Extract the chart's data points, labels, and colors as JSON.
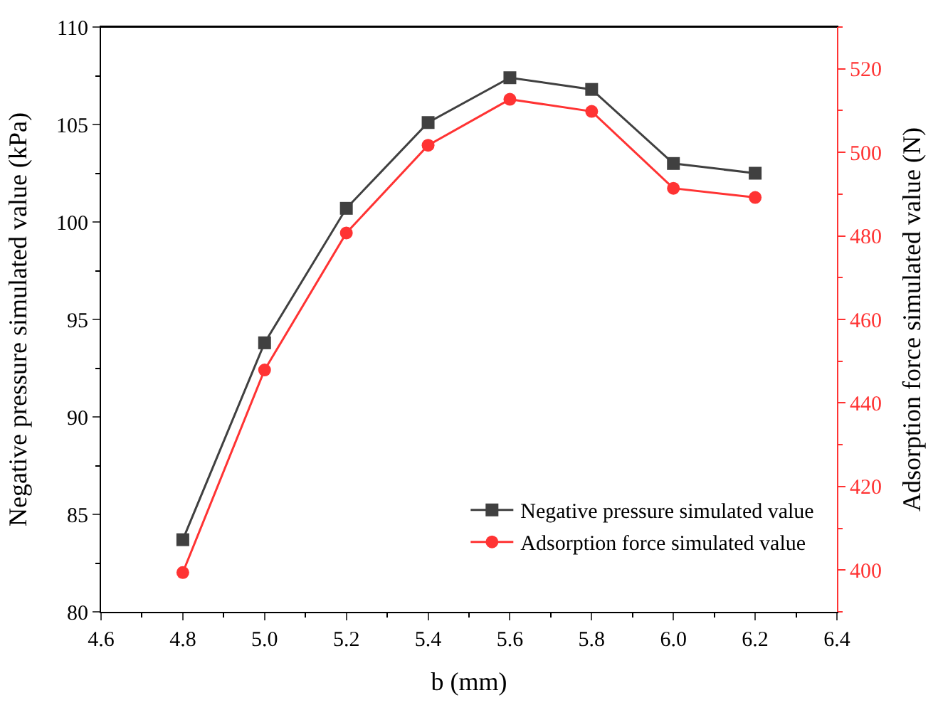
{
  "chart_data": {
    "type": "line",
    "xlabel": "b (mm)",
    "ylabel": "Negative pressure simulated value (kPa)",
    "y2label": "Adsorption force simulated value (N)",
    "x": [
      4.8,
      5.0,
      5.2,
      5.4,
      5.6,
      5.8,
      6.0,
      6.2
    ],
    "series": [
      {
        "name": "Negative pressure simulated value",
        "color": "#404040",
        "marker": "square",
        "values": [
          83.7,
          93.8,
          100.7,
          105.1,
          107.4,
          106.8,
          103.0,
          102.5
        ]
      },
      {
        "name": "Adsorption force simulated value",
        "color": "#ff3333",
        "marker": "circle",
        "axis": "y2",
        "values": [
          399.4,
          447.9,
          480.7,
          501.7,
          512.7,
          509.8,
          491.4,
          489.2
        ]
      }
    ],
    "xlim": [
      4.6,
      6.4
    ],
    "xticks": [
      4.6,
      4.8,
      {
        "value": 5,
        "label": "5.0"
      },
      5.2,
      5.4,
      5.6,
      5.8,
      {
        "value": 6,
        "label": "6.0"
      },
      6.2,
      6.4
    ],
    "ylim": [
      80,
      110
    ],
    "yticks": [
      80,
      85,
      90,
      95,
      100,
      105,
      110
    ],
    "y2lim": [
      390,
      530
    ],
    "y2ticks": [
      400,
      420,
      440,
      460,
      480,
      500,
      520
    ],
    "legend": "bottom right",
    "line_style": "solid"
  }
}
